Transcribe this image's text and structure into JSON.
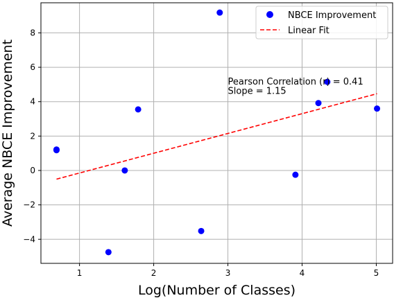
{
  "chart_data": {
    "type": "scatter",
    "xlabel": "Log(Number of Classes)",
    "ylabel": "Average NBCE Improvement",
    "xlim": [
      0.48,
      5.22
    ],
    "ylim": [
      -5.4,
      9.75
    ],
    "xticks": [
      1,
      2,
      3,
      4,
      5
    ],
    "yticks": [
      -4,
      -2,
      0,
      2,
      4,
      6,
      8
    ],
    "grid": true,
    "legend_position": "top-right",
    "series": [
      {
        "name": "NBCE Improvement",
        "kind": "scatter",
        "color": "#0000ff",
        "points": [
          {
            "x": 0.69,
            "y": 1.18
          },
          {
            "x": 0.69,
            "y": 1.22
          },
          {
            "x": 1.39,
            "y": -4.75
          },
          {
            "x": 1.61,
            "y": 0.0
          },
          {
            "x": 1.79,
            "y": 3.55
          },
          {
            "x": 2.64,
            "y": -3.52
          },
          {
            "x": 2.89,
            "y": 9.18
          },
          {
            "x": 3.91,
            "y": -0.25
          },
          {
            "x": 4.22,
            "y": 3.92
          },
          {
            "x": 4.34,
            "y": 5.15
          },
          {
            "x": 5.01,
            "y": 3.6
          }
        ]
      },
      {
        "name": "Linear Fit",
        "kind": "line",
        "style": "dashed",
        "color": "#ff0000",
        "slope": 1.15,
        "x_range": [
          0.69,
          5.01
        ]
      }
    ],
    "annotations": [
      {
        "text": "Pearson Correlation (r) = 0.41",
        "x": 3.0,
        "y": 5.15
      },
      {
        "text": "Slope = 1.15",
        "x": 3.0,
        "y": 4.62
      }
    ]
  }
}
